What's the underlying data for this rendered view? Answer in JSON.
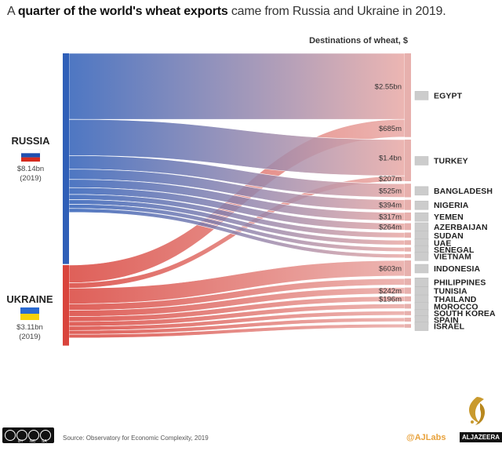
{
  "header": {
    "title_prefix": "A ",
    "title_bold": "quarter of the world's wheat exports",
    "title_rest": " came from Russia and Ukraine in 2019."
  },
  "chart_data": {
    "type": "sankey",
    "title": "A quarter of the world's wheat exports came from Russia and Ukraine in 2019.",
    "destinations_heading": "Destinations of wheat, $",
    "sources": [
      {
        "name": "RUSSIA",
        "value_label": "$8.14bn",
        "year_label": "(2019)",
        "value_usd_bn": 8.14,
        "color": "#2f5fb8"
      },
      {
        "name": "UKRAINE",
        "value_label": "$3.11bn",
        "year_label": "(2019)",
        "value_usd_bn": 3.11,
        "color": "#d9443c"
      }
    ],
    "destinations": [
      {
        "name": "EGYPT",
        "flows": [
          {
            "from": "RUSSIA",
            "value": 2.55,
            "label": "$2.55bn"
          },
          {
            "from": "UKRAINE",
            "value": 0.685,
            "label": "$685m"
          }
        ]
      },
      {
        "name": "TURKEY",
        "flows": [
          {
            "from": "RUSSIA",
            "value": 1.4,
            "label": "$1.4bn"
          },
          {
            "from": "UKRAINE",
            "value": 0.207,
            "label": "$207m"
          }
        ]
      },
      {
        "name": "BANGLADESH",
        "flows": [
          {
            "from": "RUSSIA",
            "value": 0.525,
            "label": "$525m"
          }
        ]
      },
      {
        "name": "NIGERIA",
        "flows": [
          {
            "from": "RUSSIA",
            "value": 0.394,
            "label": "$394m"
          }
        ]
      },
      {
        "name": "YEMEN",
        "flows": [
          {
            "from": "RUSSIA",
            "value": 0.317,
            "label": "$317m"
          }
        ]
      },
      {
        "name": "AZERBAIJAN",
        "flows": [
          {
            "from": "RUSSIA",
            "value": 0.264,
            "label": "$264m"
          }
        ]
      },
      {
        "name": "SUDAN",
        "flows": [
          {
            "from": "RUSSIA",
            "value": 0.2,
            "label": ""
          }
        ]
      },
      {
        "name": "UAE",
        "flows": [
          {
            "from": "RUSSIA",
            "value": 0.18,
            "label": ""
          }
        ]
      },
      {
        "name": "SENEGAL",
        "flows": [
          {
            "from": "RUSSIA",
            "value": 0.16,
            "label": ""
          }
        ]
      },
      {
        "name": "VIETNAM",
        "flows": [
          {
            "from": "RUSSIA",
            "value": 0.15,
            "label": ""
          }
        ]
      },
      {
        "name": "INDONESIA",
        "flows": [
          {
            "from": "UKRAINE",
            "value": 0.603,
            "label": "$603m"
          }
        ]
      },
      {
        "name": "PHILIPPINES",
        "flows": [
          {
            "from": "UKRAINE",
            "value": 0.25,
            "label": ""
          }
        ]
      },
      {
        "name": "TUNISIA",
        "flows": [
          {
            "from": "UKRAINE",
            "value": 0.242,
            "label": "$242m"
          }
        ]
      },
      {
        "name": "THAILAND",
        "flows": [
          {
            "from": "UKRAINE",
            "value": 0.196,
            "label": "$196m"
          }
        ]
      },
      {
        "name": "MOROCCO",
        "flows": [
          {
            "from": "UKRAINE",
            "value": 0.18,
            "label": ""
          }
        ]
      },
      {
        "name": "SOUTH KOREA",
        "flows": [
          {
            "from": "UKRAINE",
            "value": 0.16,
            "label": ""
          }
        ]
      },
      {
        "name": "SPAIN",
        "flows": [
          {
            "from": "UKRAINE",
            "value": 0.15,
            "label": ""
          }
        ]
      },
      {
        "name": "ISRAEL",
        "flows": [
          {
            "from": "UKRAINE",
            "value": 0.14,
            "label": ""
          }
        ]
      }
    ]
  },
  "footer": {
    "source": "Source: Observatory for Economic Complexity, 2019",
    "handle": "@AJLabs",
    "brand": "ALJAZEERA",
    "license_badge": [
      "BY",
      "NC",
      "SA"
    ]
  },
  "colors": {
    "russia": "#2f5fb8",
    "ukraine": "#d9443c",
    "flow_end": "#e9a9a5",
    "node_bar": "#e7b0ad",
    "handle": "#e8a23c"
  }
}
